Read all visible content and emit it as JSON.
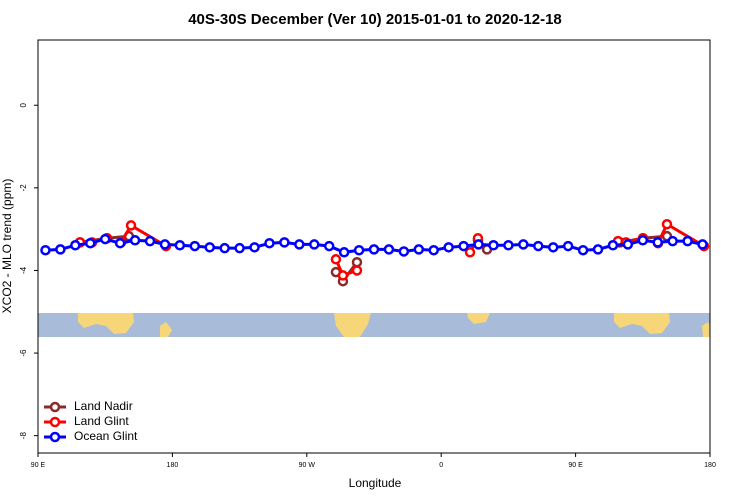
{
  "chart_data": {
    "type": "line",
    "title": "40S-30S December (Ver 10)   2015-01-01 to 2020-12-18",
    "x_label": "Longitude",
    "y_label": "XCO2 - MLO trend (ppm)",
    "xlim": [
      90,
      540
    ],
    "ylim": [
      -8.42,
      1.58
    ],
    "xticks": [
      {
        "value": 90,
        "label": "90 E"
      },
      180,
      {
        "value": 270,
        "label": "90 W"
      },
      {
        "value": 360,
        "label": "0"
      },
      {
        "value": 450,
        "label": "90 E"
      },
      {
        "value": 540,
        "label": "180"
      }
    ],
    "yticks": [
      0,
      -2,
      -4,
      -6,
      -8
    ],
    "legend": "bottomleft",
    "series": [
      {
        "name": "Land Nadir",
        "color": "#8b2a2a",
        "x": [
          118.1,
          136.2,
          150.9,
          null,
          289.5,
          294.2,
          303.6,
          null,
          384.6,
          390.7,
          null,
          479.7,
          495.1,
          511.2
        ],
        "values": [
          -3.32,
          -3.22,
          -3.17,
          null,
          -4.04,
          -4.26,
          -3.8,
          null,
          -3.27,
          -3.49,
          null,
          -3.32,
          -3.22,
          -3.17
        ]
      },
      {
        "name": "Land Glint",
        "color": "#ff0000",
        "x": [
          118.1,
          126.2,
          136.2,
          null,
          145.6,
          152.3,
          175.7,
          null,
          289.5,
          294.2,
          303.6,
          null,
          379.3,
          384.6,
          null,
          478.4,
          483.7,
          495.1,
          null,
          505.2,
          511.2,
          536
        ],
        "values": [
          -3.32,
          -3.32,
          -3.22,
          null,
          -3.32,
          -2.91,
          -3.41,
          null,
          -3.73,
          -4.12,
          -4.0,
          null,
          -3.56,
          -3.22,
          null,
          -3.29,
          -3.32,
          -3.22,
          null,
          -3.34,
          -2.88,
          -3.41
        ]
      },
      {
        "name": "Ocean Glint",
        "color": "#0000ff",
        "x": [
          95,
          105,
          115,
          125,
          135,
          145,
          155,
          165,
          175,
          185,
          195,
          205,
          215,
          225,
          235,
          245,
          255,
          265,
          275,
          285,
          295,
          305,
          315,
          325,
          335,
          345,
          355,
          365,
          375,
          385,
          395,
          405,
          415,
          425,
          435,
          445,
          455,
          465,
          475,
          485,
          495,
          505,
          515,
          525,
          535
        ],
        "values": [
          -3.51,
          -3.49,
          -3.39,
          -3.34,
          -3.24,
          -3.34,
          -3.27,
          -3.29,
          -3.37,
          -3.39,
          -3.41,
          -3.44,
          -3.46,
          -3.46,
          -3.44,
          -3.34,
          -3.32,
          -3.37,
          -3.37,
          -3.41,
          -3.56,
          -3.51,
          -3.49,
          -3.49,
          -3.54,
          -3.49,
          -3.51,
          -3.44,
          -3.41,
          -3.37,
          -3.39,
          -3.39,
          -3.37,
          -3.41,
          -3.44,
          -3.41,
          -3.51,
          -3.49,
          -3.39,
          -3.37,
          -3.27,
          -3.32,
          -3.29,
          -3.29,
          -3.37
        ]
      }
    ]
  }
}
